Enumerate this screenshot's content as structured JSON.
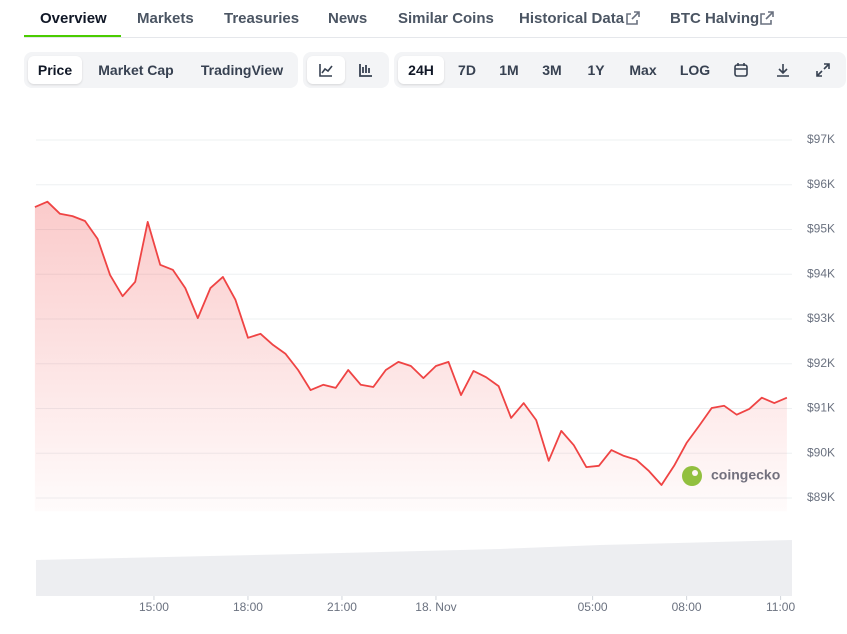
{
  "tabs": [
    "Overview",
    "Markets",
    "Treasuries",
    "News",
    "Similar Coins",
    "Historical Data",
    "BTC Halving"
  ],
  "toolbar": {
    "metric": [
      "Price",
      "Market Cap",
      "TradingView"
    ],
    "ranges": [
      "24H",
      "7D",
      "1M",
      "3M",
      "1Y",
      "Max",
      "LOG"
    ]
  },
  "watermark": "coingecko",
  "chart_data": {
    "type": "line",
    "x": [
      11.2,
      11.6,
      12.0,
      12.4,
      12.8,
      13.2,
      13.6,
      14.0,
      14.4,
      14.8,
      15.2,
      15.6,
      16.0,
      16.4,
      16.8,
      17.2,
      17.6,
      18.0,
      18.4,
      18.8,
      19.2,
      19.6,
      20.0,
      20.4,
      20.8,
      21.2,
      21.6,
      22.0,
      22.4,
      22.8,
      23.2,
      23.6,
      24.0,
      24.4,
      24.8,
      25.2,
      25.6,
      26.0,
      26.4,
      26.8,
      27.2,
      27.6,
      28.0,
      28.4,
      28.8,
      29.2,
      29.6,
      30.0,
      30.4,
      30.8,
      31.2,
      31.6,
      32.0,
      32.4,
      32.8,
      33.2,
      33.6,
      34.0,
      34.4,
      34.8,
      35.2
    ],
    "series": [
      {
        "name": "Price",
        "color": "#ef4444",
        "values": [
          95500,
          95620,
          95350,
          95300,
          95190,
          94790,
          93980,
          93510,
          93830,
          95170,
          94210,
          94100,
          93690,
          93020,
          93690,
          93940,
          93430,
          92580,
          92670,
          92420,
          92220,
          91860,
          91410,
          91530,
          91460,
          91860,
          91530,
          91480,
          91860,
          92040,
          91950,
          91680,
          91950,
          92040,
          91300,
          91840,
          91700,
          91500,
          90790,
          91120,
          90740,
          89830,
          90500,
          90180,
          89690,
          89720,
          90070,
          89940,
          89850,
          89600,
          89290,
          89720,
          90230,
          90610,
          91010,
          91060,
          90860,
          90990,
          91240,
          91120,
          91240
        ]
      }
    ],
    "xlim": [
      11.2,
      35.3
    ],
    "xticks": [
      {
        "value": 15,
        "label": "15:00"
      },
      {
        "value": 18,
        "label": "18:00"
      },
      {
        "value": 21,
        "label": "21:00"
      },
      {
        "value": 24,
        "label": "18. Nov"
      },
      {
        "value": 29,
        "label": "05:00"
      },
      {
        "value": 32,
        "label": "08:00"
      },
      {
        "value": 35,
        "label": "11:00"
      }
    ],
    "ylim": [
      88700,
      98000
    ],
    "yticks": [
      {
        "value": 89000,
        "label": "$89K"
      },
      {
        "value": 90000,
        "label": "$90K"
      },
      {
        "value": 91000,
        "label": "$91K"
      },
      {
        "value": 92000,
        "label": "$92K"
      },
      {
        "value": 93000,
        "label": "$93K"
      },
      {
        "value": 94000,
        "label": "$94K"
      },
      {
        "value": 95000,
        "label": "$95K"
      },
      {
        "value": 96000,
        "label": "$96K"
      },
      {
        "value": 97000,
        "label": "$97K"
      }
    ],
    "grid": true
  }
}
